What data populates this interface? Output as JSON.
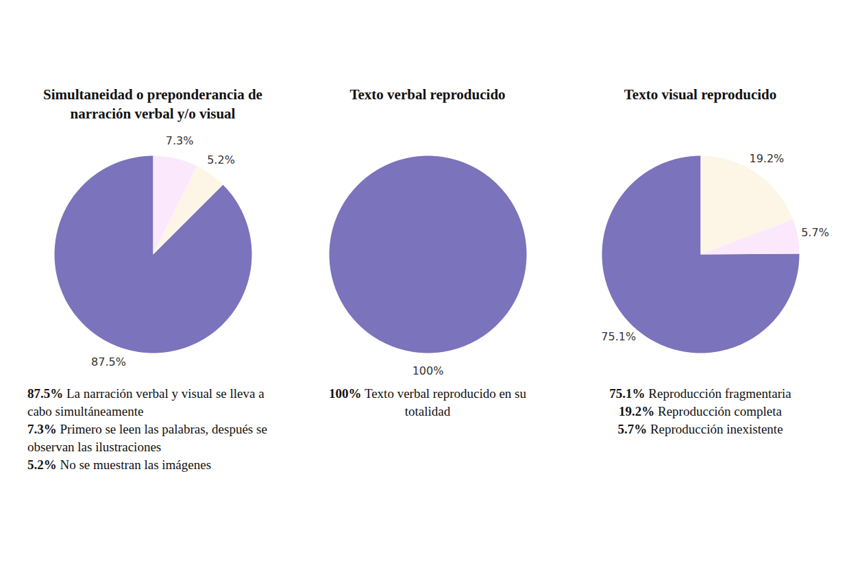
{
  "chart_data": [
    {
      "type": "pie",
      "title": "Simultaneidad o preponderancia de narración verbal y/o visual",
      "categories": [
        "La narración verbal y visual se lleva a cabo simultáneamente",
        "Primero se leen las palabras, después se observan las ilustraciones",
        "No se muestran las imágenes"
      ],
      "values": [
        87.5,
        7.3,
        5.2
      ],
      "value_labels": [
        "87.5%",
        "7.3%",
        "5.2%"
      ],
      "colors": [
        "#7b73bb",
        "#fce8fc",
        "#fdf6e7"
      ],
      "data_labels": true,
      "legend": "bottom"
    },
    {
      "type": "pie",
      "title": "Texto verbal reproducido",
      "categories": [
        "Texto verbal reproducido en su totalidad"
      ],
      "values": [
        100
      ],
      "value_labels": [
        "100%"
      ],
      "colors": [
        "#7b73bb"
      ],
      "data_labels": true,
      "legend": "bottom"
    },
    {
      "type": "pie",
      "title": "Texto visual reproducido",
      "categories": [
        "Reproducción fragmentaria",
        "Reproducción completa",
        "Reproducción inexistente"
      ],
      "values": [
        75.1,
        19.2,
        5.7
      ],
      "value_labels": [
        "75.1%",
        "19.2%",
        "5.7%"
      ],
      "colors": [
        "#7b73bb",
        "#fdf6e7",
        "#fce8fc"
      ],
      "data_labels": true,
      "legend": "bottom"
    }
  ]
}
